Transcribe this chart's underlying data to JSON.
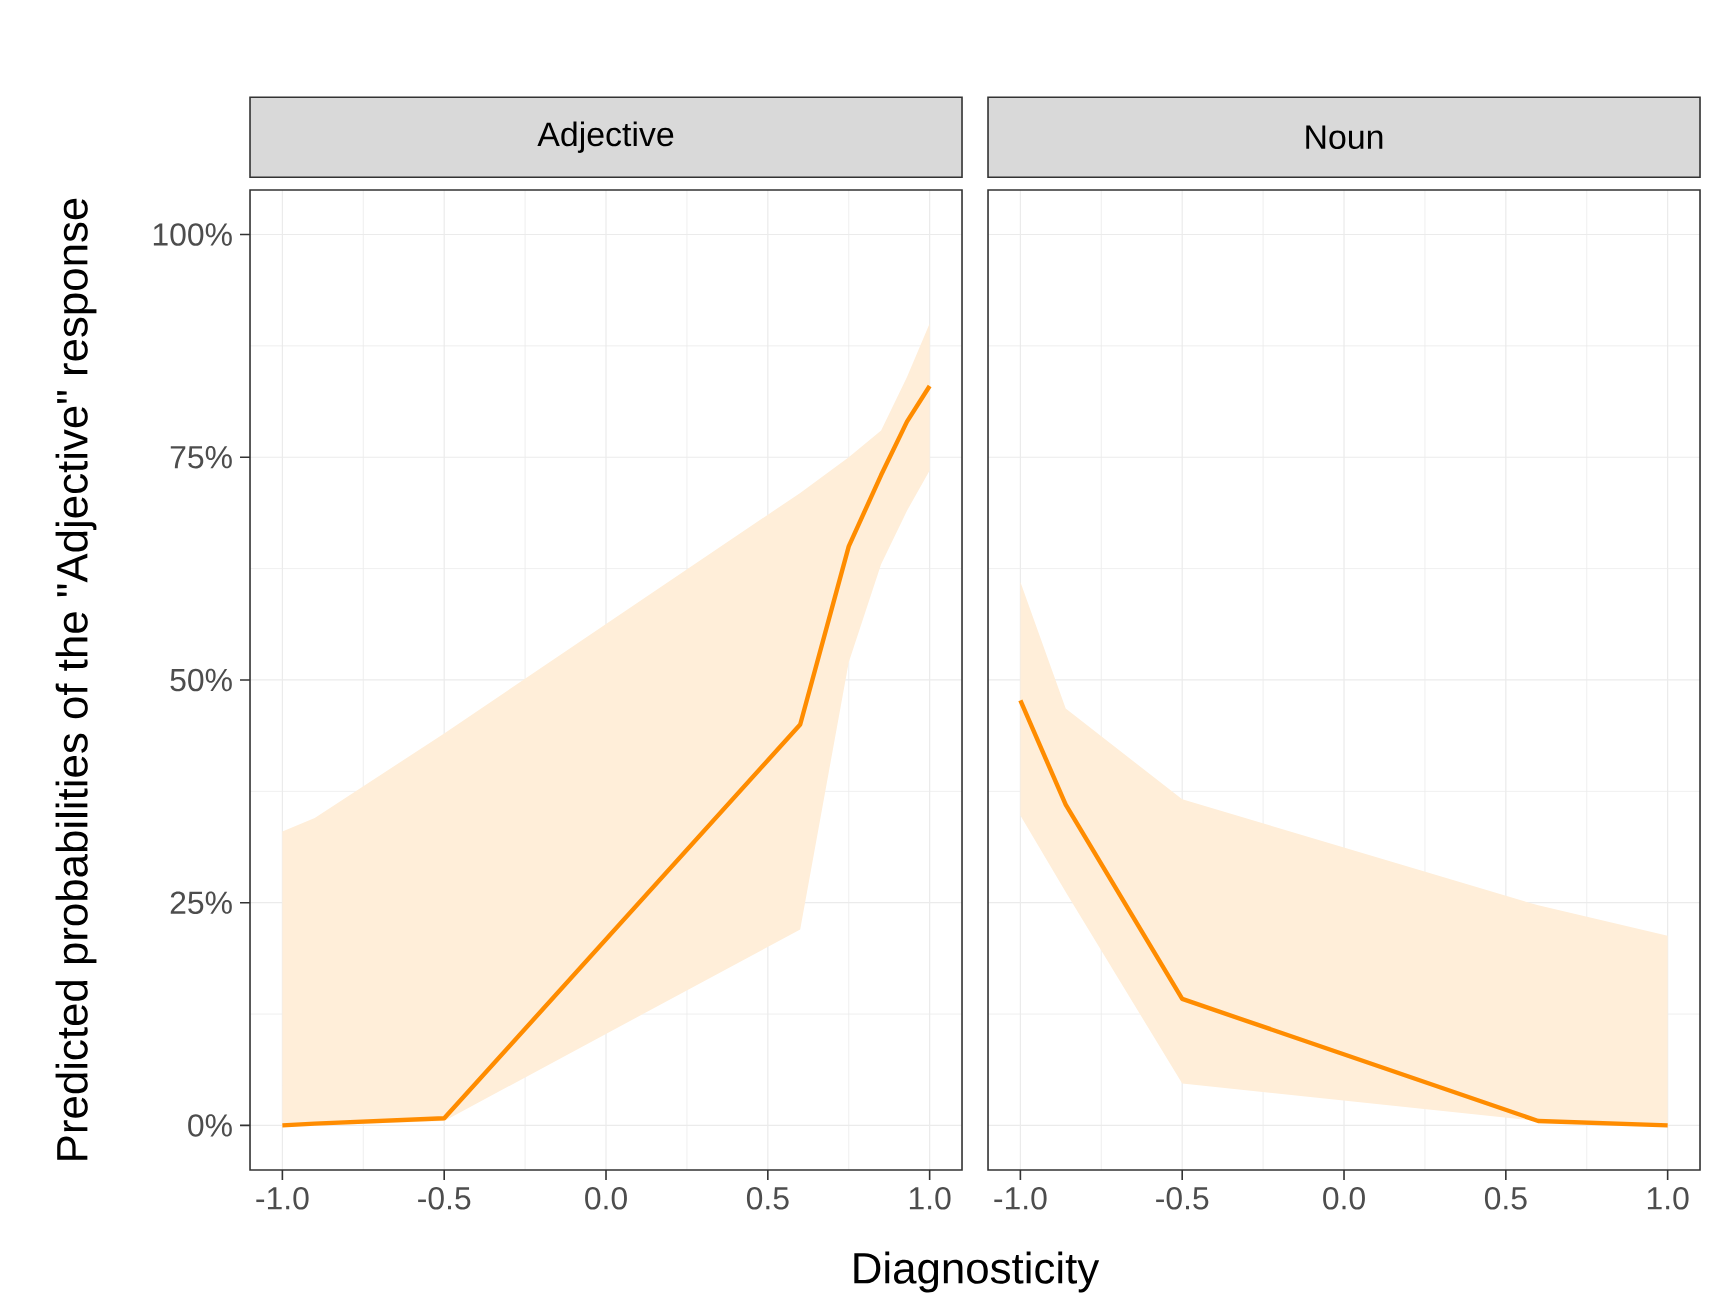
{
  "chart_data": [
    {
      "type": "line",
      "title": "Adjective",
      "xlabel": "Diagnosticity",
      "ylabel": "Predicted probabilities of the \"Adjective\" response",
      "xlim": [
        -1.1,
        1.1
      ],
      "ylim": [
        -0.05,
        1.05
      ],
      "xticks": [
        {
          "value": -1,
          "label": "-1.0"
        },
        {
          "value": -0.5,
          "label": "-0.5"
        },
        {
          "value": 0,
          "label": "0.0"
        },
        {
          "value": 0.5,
          "label": "0.5"
        },
        {
          "value": 1,
          "label": "1.0"
        }
      ],
      "yticks": [
        {
          "value": 0,
          "label": "0%"
        },
        {
          "value": 0.25,
          "label": "25%"
        },
        {
          "value": 0.5,
          "label": "50%"
        },
        {
          "value": 0.75,
          "label": "75%"
        },
        {
          "value": 1,
          "label": "100%"
        }
      ],
      "grid": true,
      "series": [
        {
          "color": "#ff8c00",
          "x": [
            -1,
            -0.9,
            -0.5,
            0.6,
            0.75,
            0.85,
            0.93,
            1.0
          ],
          "values": [
            0,
            0.002,
            0.008,
            0.45,
            0.65,
            0.73,
            0.79,
            0.83
          ],
          "lower": [
            0,
            0,
            0.005,
            0.22,
            0.52,
            0.63,
            0.69,
            0.735
          ],
          "upper": [
            0.33,
            0.345,
            0.44,
            0.71,
            0.75,
            0.78,
            0.84,
            0.9
          ]
        }
      ]
    },
    {
      "type": "line",
      "title": "Noun",
      "xlim": [
        -1.1,
        1.1
      ],
      "ylim": [
        -0.05,
        1.05
      ],
      "xticks": [
        {
          "value": -1,
          "label": "-1.0"
        },
        {
          "value": -0.5,
          "label": "-0.5"
        },
        {
          "value": 0,
          "label": "0.0"
        },
        {
          "value": 0.5,
          "label": "0.5"
        },
        {
          "value": 1,
          "label": "1.0"
        }
      ],
      "tick_labels": "x",
      "grid": true,
      "yticks": [
        {
          "value": 0,
          "label": null
        },
        {
          "value": 0.25,
          "label": null
        },
        {
          "value": 0.5,
          "label": null
        },
        {
          "value": 0.75,
          "label": null
        },
        {
          "value": 1,
          "label": null
        }
      ],
      "series": [
        {
          "color": "#ff8c00",
          "x": [
            -1,
            -0.86,
            -0.5,
            0.6,
            1.0
          ],
          "values": [
            0.477,
            0.36,
            0.142,
            0.005,
            0
          ],
          "lower": [
            0.348,
            0.262,
            0.047,
            0.005,
            0
          ],
          "upper": [
            0.61,
            0.468,
            0.366,
            0.247,
            0.213
          ]
        }
      ]
    }
  ]
}
